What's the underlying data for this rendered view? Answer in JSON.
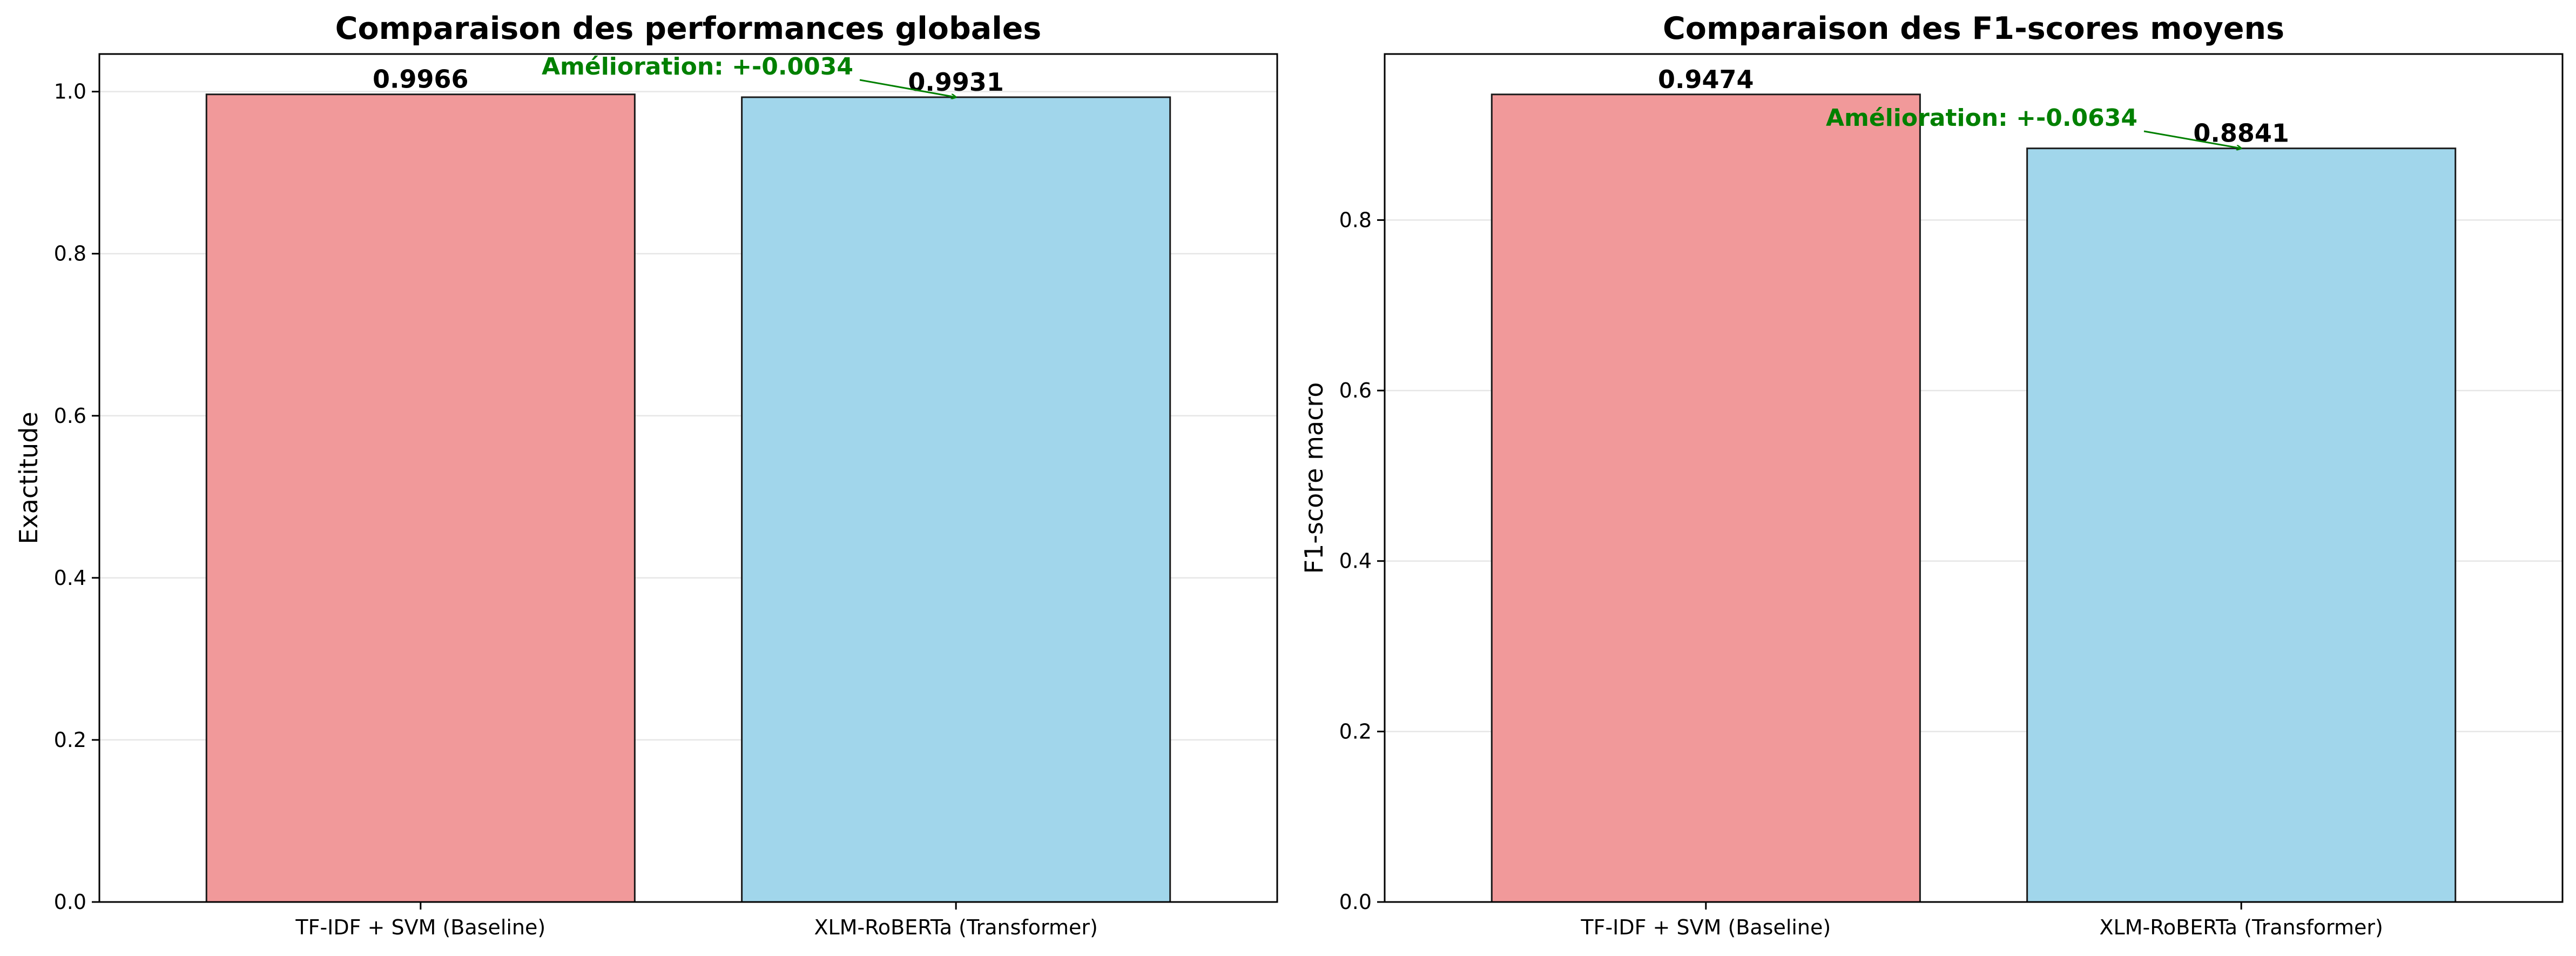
{
  "chart_data": [
    {
      "type": "bar",
      "title": "Comparaison des performances globales",
      "xlabel": "",
      "ylabel": "Exactitude",
      "ylim": [
        0,
        1.0464
      ],
      "yticks": [
        0.0,
        0.2,
        0.4,
        0.6,
        0.8,
        1.0
      ],
      "ytick_labels": [
        "0.0",
        "0.2",
        "0.4",
        "0.6",
        "0.8",
        "1.0"
      ],
      "grid": true,
      "categories": [
        "TF-IDF + SVM (Baseline)",
        "XLM-RoBERTa (Transformer)"
      ],
      "values": [
        0.9966,
        0.9931
      ],
      "value_labels": [
        "0.9966",
        "0.9931"
      ],
      "colors": [
        "#f1999a",
        "#a1d6eb"
      ],
      "annotation": {
        "text": "Amélioration: +-0.0034",
        "target_category": "XLM-RoBERTa (Transformer)",
        "target_value": 0.9931,
        "color": "#008000"
      }
    },
    {
      "type": "bar",
      "title": "Comparaison des F1-scores moyens",
      "xlabel": "",
      "ylabel": "F1-score macro",
      "ylim": [
        0,
        0.9948
      ],
      "yticks": [
        0.0,
        0.2,
        0.4,
        0.6,
        0.8
      ],
      "ytick_labels": [
        "0.0",
        "0.2",
        "0.4",
        "0.6",
        "0.8"
      ],
      "grid": true,
      "categories": [
        "TF-IDF + SVM (Baseline)",
        "XLM-RoBERTa (Transformer)"
      ],
      "values": [
        0.9474,
        0.8841
      ],
      "value_labels": [
        "0.9474",
        "0.8841"
      ],
      "colors": [
        "#f1999a",
        "#a1d6eb"
      ],
      "annotation": {
        "text": "Amélioration: +-0.0634",
        "target_category": "XLM-RoBERTa (Transformer)",
        "target_value": 0.8841,
        "color": "#008000"
      }
    }
  ]
}
